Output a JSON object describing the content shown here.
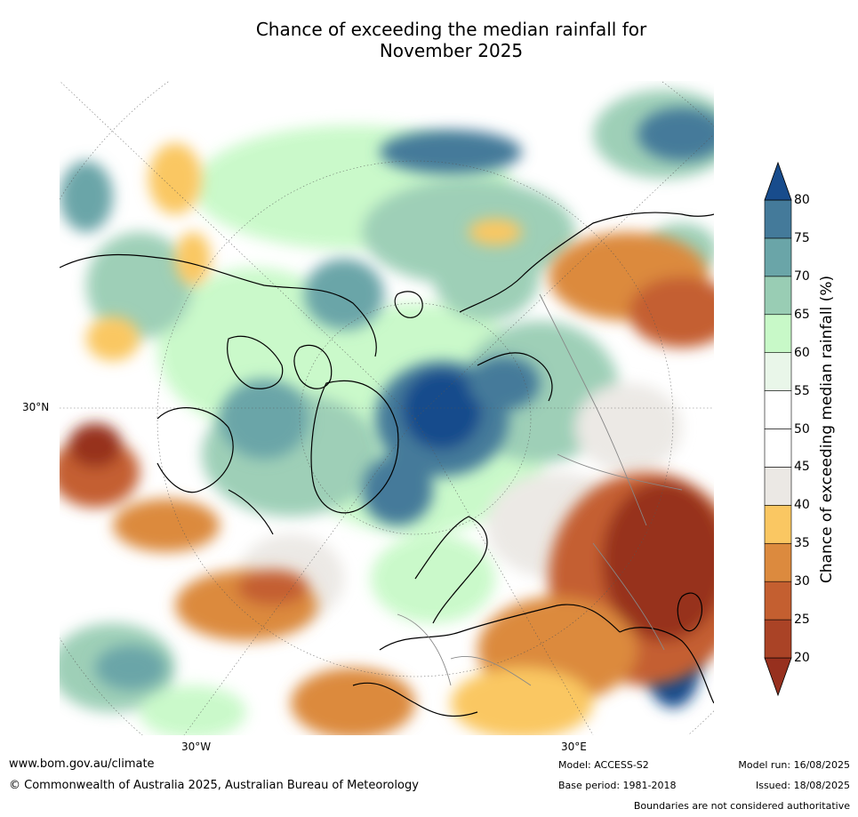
{
  "title": {
    "line1": "Chance of exceeding the median rainfall for",
    "line2": "November 2025"
  },
  "map": {
    "projection": "north-polar-stereographic",
    "lat_labels": [
      "30°N"
    ],
    "lon_labels": [
      "30°W",
      "30°E"
    ]
  },
  "legend": {
    "label": "Chance of exceeding median rainfall (%)",
    "ticks": [
      "20",
      "25",
      "30",
      "35",
      "40",
      "45",
      "50",
      "55",
      "60",
      "65",
      "70",
      "75",
      "80"
    ],
    "colors": [
      "#97301e",
      "#aa4326",
      "#c45f30",
      "#dc8a3e",
      "#fac762",
      "#ebe8e4",
      "#ffffff",
      "#ffffff",
      "#e9f6e9",
      "#c8f9c8",
      "#99cdb4",
      "#6aa5a8",
      "#447a9a",
      "#184c8c"
    ]
  },
  "footer": {
    "url": "www.bom.gov.au/climate",
    "copyright": "© Commonwealth of Australia 2025, Australian Bureau of Meteorology",
    "model": "Model: ACCESS-S2",
    "base_period": "Base period: 1981-2018",
    "model_run": "Model run: 16/08/2025",
    "issued": "Issued: 18/08/2025",
    "boundaries": "Boundaries are not considered authoritative"
  }
}
